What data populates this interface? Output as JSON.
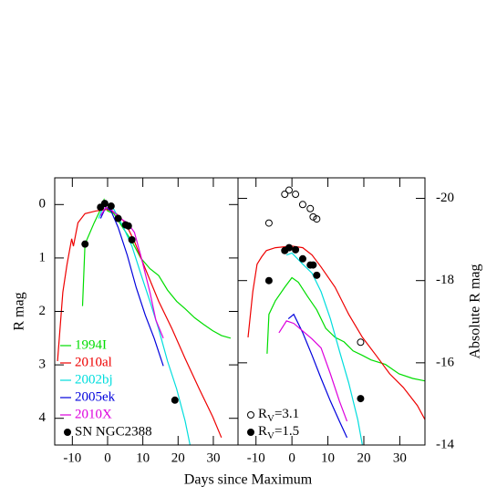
{
  "chart_data": [
    {
      "type": "line",
      "ylabel": "R mag",
      "xlim": [
        -15,
        37
      ],
      "ylim": [
        4.5,
        -0.5
      ],
      "xticks": [
        -10,
        0,
        10,
        20,
        30
      ],
      "yticks": [
        0,
        1,
        2,
        3,
        4
      ],
      "legend": "lower left",
      "series": [
        {
          "name": "1994I",
          "color": "#00dd00",
          "x": [
            -7.1,
            -6.4,
            -3.8,
            -2,
            -1,
            0,
            1.8,
            4.3,
            6.9,
            9.4,
            12,
            14.5,
            17,
            19.6,
            22,
            24.7,
            27.2,
            29.8,
            32.3,
            34.9
          ],
          "values": [
            1.9,
            0.74,
            0.34,
            0.09,
            -0.09,
            0.12,
            0.17,
            0.43,
            0.69,
            1.0,
            1.2,
            1.33,
            1.6,
            1.81,
            1.95,
            2.12,
            2.24,
            2.36,
            2.45,
            2.5
          ]
        },
        {
          "name": "2010al",
          "color": "#ee0000",
          "x": [
            -14.2,
            -12.7,
            -11.5,
            -10.2,
            -9.7,
            -8.4,
            -6.4,
            -3.3,
            0,
            2.5,
            5,
            7.6,
            10.7,
            14.5,
            18.3,
            22,
            26,
            29.8,
            32.3
          ],
          "values": [
            2.93,
            1.64,
            1.12,
            0.64,
            0.78,
            0.34,
            0.17,
            0.12,
            0.09,
            0.17,
            0.34,
            0.69,
            1.2,
            1.81,
            2.33,
            2.88,
            3.45,
            3.97,
            4.36
          ]
        },
        {
          "name": "2002bj",
          "color": "#00dddd",
          "x": [
            -2.5,
            -1.3,
            0,
            1.8,
            4.3,
            6.9,
            9.4,
            12,
            14.5,
            17,
            19.6,
            22,
            23.4
          ],
          "values": [
            0.26,
            0.05,
            0,
            0.09,
            0.4,
            0.78,
            1.29,
            1.81,
            2.33,
            2.93,
            3.45,
            4.05,
            4.5
          ]
        },
        {
          "name": "2005ek",
          "color": "#0000dd",
          "x": [
            -2,
            -0.5,
            1,
            3,
            5.6,
            8.1,
            10.7,
            13.2,
            15.8
          ],
          "values": [
            0.26,
            0.05,
            0.12,
            0.43,
            0.95,
            1.55,
            2.07,
            2.5,
            3.02
          ]
        },
        {
          "name": "2010X",
          "color": "#dd00dd",
          "x": [
            -2,
            -0.5,
            1,
            3.6,
            5.6,
            7.6,
            9.4,
            12,
            13.7,
            15.8
          ],
          "values": [
            0.21,
            0.05,
            0.09,
            0.26,
            0.34,
            0.52,
            0.95,
            1.64,
            2.16,
            2.5
          ]
        },
        {
          "name": "SN NGC2388",
          "color": "#000000",
          "marker": "filled",
          "x": [
            -6.4,
            -2,
            -0.8,
            1,
            3,
            5.1,
            5.9,
            6.9,
            19.1
          ],
          "values": [
            0.74,
            0.05,
            -0.02,
            0.03,
            0.26,
            0.38,
            0.4,
            0.66,
            3.66
          ]
        }
      ]
    },
    {
      "type": "line",
      "ylabel": "Absolute R mag",
      "xlabel": "Days since Maximum",
      "xlim": [
        -15,
        37
      ],
      "ylim": [
        -14,
        -20.5
      ],
      "xticks": [
        -10,
        0,
        10,
        20,
        30
      ],
      "yticks": [
        -20,
        -18,
        -16,
        -14
      ],
      "legend": "lower left",
      "series": [
        {
          "color": "#00dd00",
          "x": [
            -6.9,
            -6.4,
            -4.6,
            -2,
            0,
            1.8,
            4.3,
            6.9,
            9.4,
            12,
            14.5,
            17,
            19.6,
            22,
            26,
            29.8,
            33.6,
            37
          ],
          "values": [
            -16.22,
            -17.18,
            -17.51,
            -17.84,
            -18.07,
            -17.96,
            -17.62,
            -17.29,
            -16.84,
            -16.62,
            -16.51,
            -16.29,
            -16.18,
            -16.07,
            -15.96,
            -15.73,
            -15.62,
            -15.56
          ]
        },
        {
          "color": "#ee0000",
          "x": [
            -12.2,
            -10.9,
            -9.7,
            -8.4,
            -7.1,
            -4.6,
            0,
            3,
            5.6,
            8.1,
            12,
            15.8,
            19.6,
            23.4,
            27.2,
            31,
            34.9,
            37
          ],
          "values": [
            -16.62,
            -17.73,
            -18.4,
            -18.58,
            -18.73,
            -18.8,
            -18.84,
            -18.8,
            -18.62,
            -18.33,
            -17.84,
            -17.18,
            -16.62,
            -16.18,
            -15.73,
            -15.4,
            -14.96,
            -14.62
          ]
        },
        {
          "color": "#00dddd",
          "x": [
            -1.5,
            0,
            3,
            5.6,
            8.1,
            10.7,
            13.2,
            15.8,
            18.3,
            19.6
          ],
          "values": [
            -18.62,
            -18.67,
            -18.4,
            -18.18,
            -17.73,
            -17.07,
            -16.29,
            -15.51,
            -14.62,
            -14.0
          ]
        },
        {
          "color": "#0000dd",
          "x": [
            -1,
            0.5,
            3,
            5.6,
            8.1,
            10.7,
            13.2,
            15.3
          ],
          "values": [
            -17.07,
            -17.18,
            -16.73,
            -16.18,
            -15.62,
            -15.07,
            -14.58,
            -14.18
          ]
        },
        {
          "color": "#dd00dd",
          "x": [
            -3.6,
            -1.5,
            0.5,
            3.6,
            5.6,
            8.1,
            10.7,
            13.2,
            15.3
          ],
          "values": [
            -16.73,
            -17.02,
            -16.96,
            -16.73,
            -16.58,
            -16.36,
            -15.73,
            -15.07,
            -14.58
          ]
        },
        {
          "name": "RV=3.1",
          "color": "#000000",
          "marker": "open",
          "x": [
            -6.4,
            -2,
            -0.8,
            1,
            3,
            5.1,
            5.9,
            6.9,
            19.1
          ],
          "values": [
            -19.4,
            -20.1,
            -20.2,
            -20.1,
            -19.85,
            -19.75,
            -19.55,
            -19.5,
            -16.5
          ]
        },
        {
          "name": "RV=1.5",
          "color": "#000000",
          "marker": "filled",
          "x": [
            -6.4,
            -2,
            -0.8,
            1,
            3,
            5.1,
            5.9,
            6.9,
            19.1
          ],
          "values": [
            -18.0,
            -18.73,
            -18.8,
            -18.75,
            -18.53,
            -18.38,
            -18.38,
            -18.13,
            -15.13
          ]
        }
      ]
    }
  ]
}
